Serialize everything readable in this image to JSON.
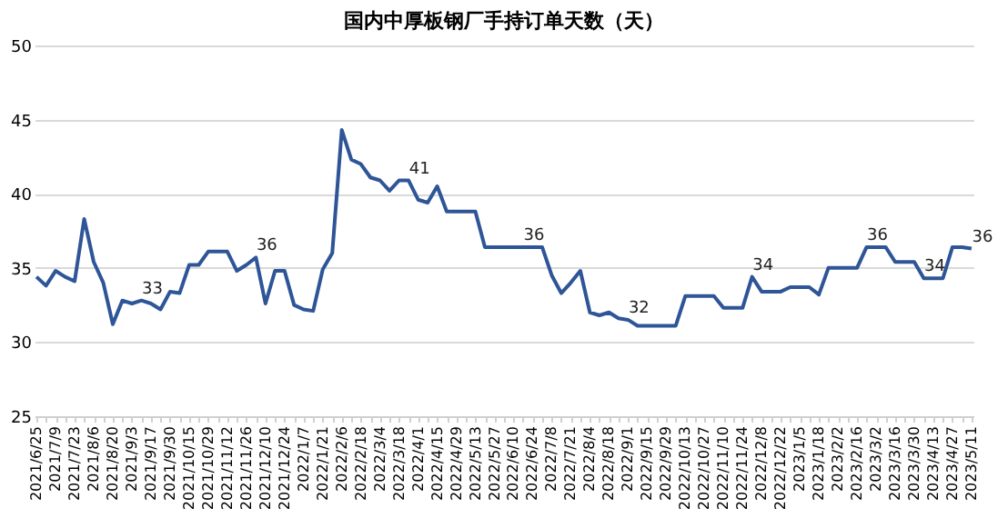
{
  "chart_data": {
    "type": "line",
    "title": "国内中厚板钢厂手持订单天数（天）",
    "categories": [
      "2021/6/25",
      null,
      "2021/7/9",
      null,
      "2021/7/23",
      null,
      "2021/8/6",
      null,
      "2021/8/20",
      null,
      "2021/9/3",
      null,
      "2021/9/17",
      null,
      "2021/9/30",
      null,
      "2021/10/15",
      null,
      "2021/10/29",
      null,
      "2021/11/12",
      null,
      "2021/11/26",
      null,
      "2021/12/10",
      null,
      "2021/12/24",
      null,
      "2022/1/7",
      null,
      "2022/1/21",
      null,
      "2022/2/6",
      null,
      "2022/2/18",
      null,
      "2022/3/4",
      null,
      "2022/3/18",
      null,
      "2022/4/1",
      null,
      "2022/4/15",
      null,
      "2022/4/29",
      null,
      "2022/5/13",
      null,
      "2022/5/27",
      null,
      "2022/6/10",
      null,
      "2022/6/24",
      null,
      "2022/7/8",
      null,
      "2022/7/21",
      null,
      "2022/8/4",
      null,
      "2022/8/18",
      null,
      "2022/9/1",
      null,
      "2022/9/15",
      null,
      "2022/9/29",
      null,
      "2022/10/13",
      null,
      "2022/10/27",
      null,
      "2022/11/10",
      null,
      "2022/11/24",
      null,
      "2022/12/8",
      null,
      "2022/12/22",
      null,
      "2023/1/5",
      null,
      "2023/1/18",
      null,
      "2023/2/2",
      null,
      "2023/2/16",
      null,
      "2023/3/2",
      null,
      "2023/3/16",
      null,
      "2023/3/30",
      null,
      "2023/4/13",
      null,
      "2023/4/27",
      null,
      "2023/5/11"
    ],
    "series": [
      {
        "color": "#2e5597",
        "values": [
          34.4,
          33.8,
          34.8,
          34.4,
          34.1,
          38.3,
          35.4,
          34.0,
          31.2,
          32.8,
          32.6,
          32.8,
          32.6,
          32.2,
          33.4,
          33.3,
          35.2,
          35.2,
          36.1,
          36.1,
          36.1,
          34.8,
          35.2,
          35.7,
          32.6,
          34.8,
          34.8,
          32.5,
          32.2,
          32.1,
          34.9,
          36.0,
          44.3,
          42.3,
          42.0,
          41.1,
          40.9,
          40.2,
          40.9,
          40.9,
          39.6,
          39.4,
          40.5,
          38.8,
          38.8,
          38.8,
          38.8,
          36.4,
          36.4,
          36.4,
          36.4,
          36.4,
          36.4,
          36.4,
          34.5,
          33.3,
          34.0,
          34.8,
          32.0,
          31.8,
          32.0,
          31.6,
          31.5,
          31.1,
          31.1,
          31.1,
          31.1,
          31.1,
          33.1,
          33.1,
          33.1,
          33.1,
          32.3,
          32.3,
          32.3,
          34.4,
          33.4,
          33.4,
          33.4,
          33.7,
          33.7,
          33.7,
          33.2,
          35.0,
          35.0,
          35.0,
          35.0,
          36.4,
          36.4,
          36.4,
          35.4,
          35.4,
          35.4,
          34.3,
          34.3,
          34.3,
          36.4,
          36.4,
          36.3
        ],
        "value_labels": [
          null,
          null,
          null,
          null,
          null,
          null,
          null,
          null,
          null,
          null,
          null,
          "33",
          null,
          null,
          null,
          null,
          null,
          null,
          null,
          null,
          null,
          null,
          null,
          "36",
          null,
          null,
          null,
          null,
          null,
          null,
          null,
          null,
          null,
          null,
          null,
          null,
          null,
          null,
          null,
          "41",
          null,
          null,
          null,
          null,
          null,
          null,
          null,
          null,
          null,
          null,
          null,
          "36",
          null,
          null,
          null,
          null,
          null,
          null,
          null,
          null,
          null,
          null,
          "32",
          null,
          null,
          null,
          null,
          null,
          null,
          null,
          null,
          null,
          null,
          null,
          null,
          "34",
          null,
          null,
          null,
          null,
          null,
          null,
          null,
          null,
          null,
          null,
          null,
          "36",
          null,
          null,
          null,
          null,
          null,
          "34",
          null,
          null,
          null,
          null,
          "36"
        ]
      }
    ],
    "ylim": [
      25,
      50
    ],
    "yticks": [
      25,
      30,
      35,
      40,
      45,
      50
    ],
    "grid": "y",
    "marker": "none",
    "line_style": "solid"
  }
}
